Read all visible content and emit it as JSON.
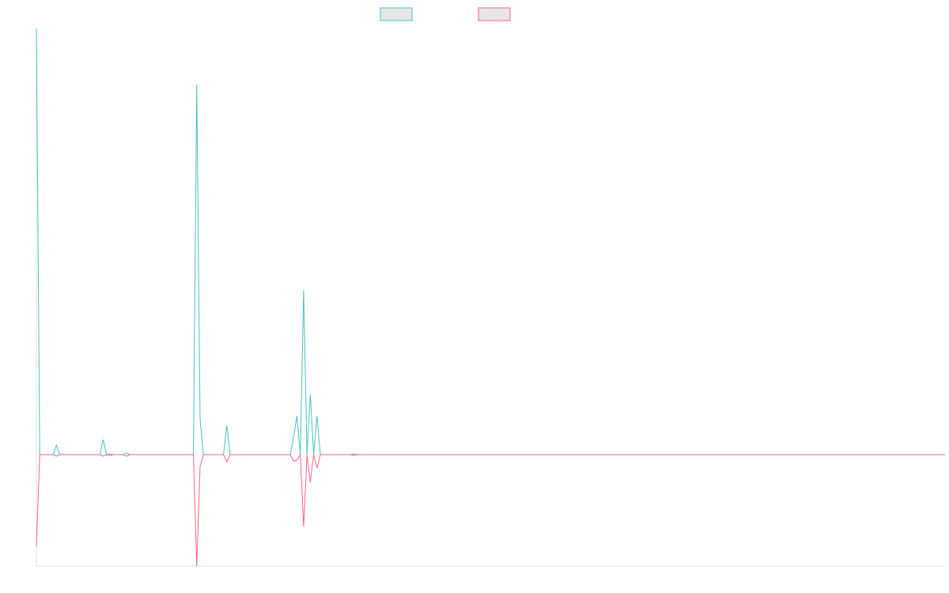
{
  "chart_data": {
    "type": "line",
    "x": [
      0,
      1,
      5,
      6,
      7,
      19,
      20,
      21,
      22,
      23,
      26,
      27,
      28,
      47,
      48,
      49,
      50,
      56,
      57,
      58,
      76,
      77,
      78,
      79,
      80,
      81,
      82,
      83,
      84,
      85,
      94,
      95,
      96,
      272
    ],
    "series": [
      {
        "color": "#4bc0c0",
        "values": [
          539,
          0,
          0,
          12,
          0,
          0,
          19,
          0,
          1,
          0,
          0,
          2,
          0,
          0,
          468,
          45,
          0,
          0,
          37,
          0,
          0,
          22,
          49,
          0,
          208,
          0,
          76,
          0,
          49,
          0,
          0,
          1,
          0,
          0
        ]
      },
      {
        "color": "#ff6384",
        "values": [
          -116,
          0,
          0,
          -2,
          0,
          0,
          -2,
          0,
          -1,
          0,
          0,
          -2,
          0,
          0,
          -141,
          -15,
          0,
          0,
          -9,
          0,
          0,
          -8,
          -7,
          0,
          -91,
          0,
          -35,
          0,
          -17,
          0,
          0,
          -1,
          0,
          0
        ]
      }
    ],
    "xlim": [
      0,
      272
    ],
    "ylim": [
      -141,
      539
    ],
    "legend": "top"
  }
}
